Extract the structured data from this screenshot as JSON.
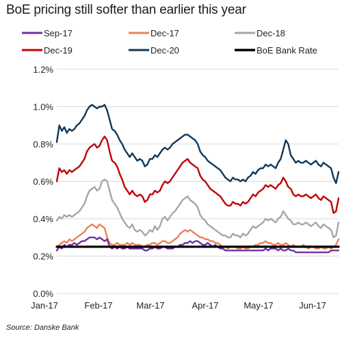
{
  "chart_data": {
    "type": "line",
    "title": "BoE pricing still softer than earlier this year",
    "source": "Source: Danske Bank",
    "xlabel": "",
    "ylabel": "",
    "ylim": [
      0,
      1.2
    ],
    "yticks": [
      "0.0%",
      "0.2%",
      "0.4%",
      "0.6%",
      "0.8%",
      "1.0%",
      "1.2%"
    ],
    "xticks": [
      "Jan-17",
      "Feb-17",
      "Mar-17",
      "Apr-17",
      "May-17",
      "Jun-17"
    ],
    "xrange": [
      0,
      112
    ],
    "legend_position": "top",
    "grid": "horizontal",
    "colors": {
      "sep17": "#7030a0",
      "dec17": "#e8825a",
      "dec18": "#a6a6a6",
      "dec19": "#c00000",
      "dec20": "#0f3758",
      "bank_rate": "#000000"
    },
    "series": [
      {
        "name": "Sep-17",
        "color": "#7030a0",
        "values": [
          0.23,
          0.25,
          0.24,
          0.26,
          0.25,
          0.26,
          0.26,
          0.27,
          0.26,
          0.27,
          0.28,
          0.28,
          0.29,
          0.3,
          0.3,
          0.3,
          0.29,
          0.3,
          0.29,
          0.28,
          0.29,
          0.25,
          0.24,
          0.25,
          0.24,
          0.25,
          0.24,
          0.24,
          0.25,
          0.24,
          0.24,
          0.24,
          0.24,
          0.24,
          0.24,
          0.23,
          0.23,
          0.24,
          0.24,
          0.25,
          0.24,
          0.24,
          0.25,
          0.25,
          0.24,
          0.24,
          0.24,
          0.25,
          0.25,
          0.26,
          0.26,
          0.27,
          0.27,
          0.28,
          0.27,
          0.28,
          0.28,
          0.27,
          0.26,
          0.26,
          0.27,
          0.26,
          0.25,
          0.26,
          0.25,
          0.24,
          0.24,
          0.23,
          0.23,
          0.23,
          0.23,
          0.23,
          0.23,
          0.23,
          0.23,
          0.23,
          0.23,
          0.23,
          0.23,
          0.23,
          0.23,
          0.23,
          0.23,
          0.24,
          0.23,
          0.24,
          0.24,
          0.24,
          0.23,
          0.24,
          0.23,
          0.23,
          0.24,
          0.23,
          0.23,
          0.22,
          0.22,
          0.22,
          0.22,
          0.22,
          0.22,
          0.22,
          0.22,
          0.22,
          0.22,
          0.22,
          0.22,
          0.22,
          0.22,
          0.23,
          0.23,
          0.23,
          0.23
        ]
      },
      {
        "name": "Dec-17",
        "color": "#e8825a",
        "values": [
          0.25,
          0.26,
          0.27,
          0.28,
          0.27,
          0.29,
          0.28,
          0.29,
          0.3,
          0.31,
          0.32,
          0.33,
          0.35,
          0.36,
          0.37,
          0.36,
          0.35,
          0.37,
          0.36,
          0.35,
          0.3,
          0.27,
          0.26,
          0.26,
          0.27,
          0.26,
          0.26,
          0.26,
          0.27,
          0.26,
          0.27,
          0.26,
          0.26,
          0.26,
          0.25,
          0.25,
          0.26,
          0.26,
          0.27,
          0.27,
          0.26,
          0.27,
          0.28,
          0.28,
          0.27,
          0.27,
          0.28,
          0.29,
          0.3,
          0.32,
          0.33,
          0.34,
          0.33,
          0.34,
          0.33,
          0.32,
          0.31,
          0.3,
          0.3,
          0.29,
          0.29,
          0.28,
          0.28,
          0.27,
          0.27,
          0.26,
          0.25,
          0.25,
          0.24,
          0.25,
          0.25,
          0.25,
          0.24,
          0.24,
          0.25,
          0.24,
          0.24,
          0.25,
          0.25,
          0.26,
          0.26,
          0.27,
          0.27,
          0.28,
          0.27,
          0.27,
          0.26,
          0.26,
          0.27,
          0.26,
          0.26,
          0.27,
          0.26,
          0.25,
          0.26,
          0.25,
          0.25,
          0.25,
          0.26,
          0.25,
          0.24,
          0.25,
          0.25,
          0.24,
          0.24,
          0.25,
          0.24,
          0.24,
          0.25,
          0.24,
          0.25,
          0.26,
          0.29
        ]
      },
      {
        "name": "Dec-18",
        "color": "#a6a6a6",
        "values": [
          0.39,
          0.41,
          0.4,
          0.42,
          0.41,
          0.42,
          0.41,
          0.42,
          0.43,
          0.44,
          0.46,
          0.48,
          0.52,
          0.55,
          0.56,
          0.57,
          0.55,
          0.56,
          0.6,
          0.61,
          0.6,
          0.55,
          0.5,
          0.48,
          0.46,
          0.43,
          0.4,
          0.38,
          0.36,
          0.35,
          0.37,
          0.34,
          0.33,
          0.34,
          0.33,
          0.31,
          0.32,
          0.34,
          0.33,
          0.36,
          0.34,
          0.36,
          0.4,
          0.41,
          0.39,
          0.41,
          0.43,
          0.44,
          0.46,
          0.48,
          0.5,
          0.51,
          0.52,
          0.5,
          0.49,
          0.48,
          0.46,
          0.42,
          0.4,
          0.39,
          0.37,
          0.36,
          0.35,
          0.34,
          0.33,
          0.32,
          0.31,
          0.31,
          0.3,
          0.3,
          0.32,
          0.31,
          0.31,
          0.3,
          0.32,
          0.31,
          0.32,
          0.34,
          0.36,
          0.35,
          0.36,
          0.37,
          0.38,
          0.4,
          0.39,
          0.4,
          0.39,
          0.38,
          0.4,
          0.41,
          0.44,
          0.42,
          0.4,
          0.39,
          0.37,
          0.37,
          0.38,
          0.37,
          0.37,
          0.38,
          0.37,
          0.36,
          0.37,
          0.38,
          0.36,
          0.35,
          0.37,
          0.36,
          0.35,
          0.34,
          0.3,
          0.31,
          0.38
        ]
      },
      {
        "name": "Dec-19",
        "color": "#c00000",
        "values": [
          0.6,
          0.67,
          0.65,
          0.66,
          0.64,
          0.66,
          0.65,
          0.66,
          0.67,
          0.68,
          0.7,
          0.72,
          0.76,
          0.78,
          0.79,
          0.8,
          0.78,
          0.79,
          0.82,
          0.84,
          0.82,
          0.76,
          0.71,
          0.7,
          0.68,
          0.64,
          0.61,
          0.57,
          0.55,
          0.53,
          0.55,
          0.53,
          0.52,
          0.53,
          0.52,
          0.49,
          0.5,
          0.53,
          0.53,
          0.55,
          0.54,
          0.55,
          0.58,
          0.6,
          0.59,
          0.6,
          0.62,
          0.64,
          0.66,
          0.68,
          0.7,
          0.71,
          0.72,
          0.7,
          0.69,
          0.68,
          0.67,
          0.63,
          0.61,
          0.6,
          0.58,
          0.56,
          0.55,
          0.54,
          0.53,
          0.52,
          0.5,
          0.48,
          0.47,
          0.47,
          0.49,
          0.48,
          0.48,
          0.47,
          0.49,
          0.48,
          0.49,
          0.51,
          0.53,
          0.52,
          0.54,
          0.55,
          0.56,
          0.58,
          0.57,
          0.58,
          0.57,
          0.56,
          0.58,
          0.59,
          0.62,
          0.6,
          0.57,
          0.56,
          0.53,
          0.52,
          0.53,
          0.52,
          0.52,
          0.53,
          0.52,
          0.51,
          0.52,
          0.53,
          0.51,
          0.5,
          0.52,
          0.51,
          0.5,
          0.49,
          0.43,
          0.44,
          0.51
        ]
      },
      {
        "name": "Dec-20",
        "color": "#0f3758",
        "values": [
          0.81,
          0.9,
          0.87,
          0.89,
          0.86,
          0.88,
          0.87,
          0.88,
          0.9,
          0.91,
          0.93,
          0.95,
          0.98,
          1.0,
          1.01,
          1.0,
          0.99,
          1.0,
          1.0,
          1.01,
          0.98,
          0.93,
          0.88,
          0.87,
          0.85,
          0.82,
          0.8,
          0.77,
          0.75,
          0.73,
          0.75,
          0.73,
          0.71,
          0.72,
          0.71,
          0.68,
          0.69,
          0.72,
          0.72,
          0.74,
          0.73,
          0.75,
          0.77,
          0.78,
          0.77,
          0.78,
          0.8,
          0.81,
          0.82,
          0.83,
          0.84,
          0.85,
          0.85,
          0.84,
          0.83,
          0.82,
          0.8,
          0.76,
          0.74,
          0.73,
          0.71,
          0.7,
          0.69,
          0.68,
          0.67,
          0.66,
          0.64,
          0.62,
          0.61,
          0.6,
          0.62,
          0.61,
          0.61,
          0.6,
          0.61,
          0.6,
          0.62,
          0.63,
          0.65,
          0.64,
          0.66,
          0.67,
          0.67,
          0.69,
          0.68,
          0.69,
          0.68,
          0.67,
          0.7,
          0.72,
          0.77,
          0.82,
          0.8,
          0.74,
          0.72,
          0.7,
          0.71,
          0.7,
          0.7,
          0.71,
          0.7,
          0.69,
          0.7,
          0.71,
          0.69,
          0.68,
          0.7,
          0.69,
          0.68,
          0.67,
          0.62,
          0.59,
          0.65
        ]
      },
      {
        "name": "BoE Bank Rate",
        "color": "#000000",
        "values": [
          0.25,
          0.25
        ]
      }
    ]
  }
}
